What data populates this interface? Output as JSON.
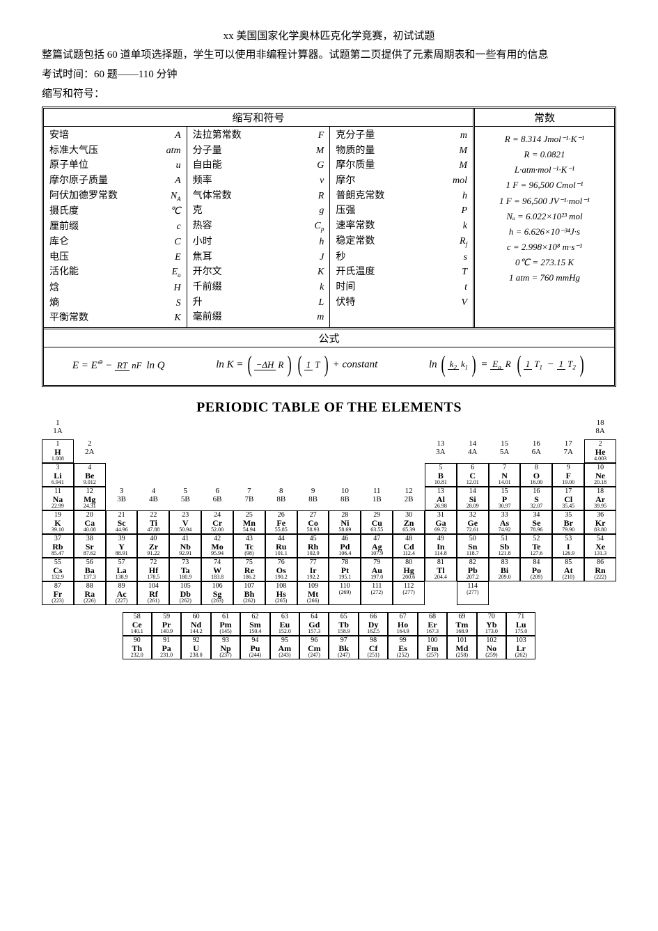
{
  "title": "xx 美国国家化学奥林匹克化学竞赛，初试试题",
  "intro1": "整篇试题包括 60 道单项选择题，学生可以使用非编程计算器。试题第二页提供了元素周期表和一些有用的信息",
  "intro2": "考试时间：60 题——110 分钟",
  "intro3": "缩写和符号：",
  "abbrev_header": "缩写和符号",
  "const_header": "常数",
  "formula_header": "公式",
  "col1": [
    [
      "安培",
      "A"
    ],
    [
      "标准大气压",
      "atm"
    ],
    [
      "原子单位",
      "u"
    ],
    [
      "摩尔原子质量",
      "A"
    ],
    [
      "阿伏加德罗常数",
      "N_A"
    ],
    [
      "摄氏度",
      "℃"
    ],
    [
      "厘前缀",
      "c"
    ],
    [
      "库仑",
      "C"
    ],
    [
      "电压",
      "E"
    ],
    [
      "活化能",
      "E_a"
    ],
    [
      "焓",
      "H"
    ],
    [
      "熵",
      "S"
    ],
    [
      "平衡常数",
      "K"
    ]
  ],
  "col2": [
    [
      "法拉第常数",
      "F"
    ],
    [
      "分子量",
      "M"
    ],
    [
      "自由能",
      "G"
    ],
    [
      "频率",
      "v"
    ],
    [
      "气体常数",
      "R"
    ],
    [
      "克",
      "g"
    ],
    [
      "热容",
      "C_p"
    ],
    [
      "小时",
      "h"
    ],
    [
      "焦耳",
      "J"
    ],
    [
      "开尔文",
      "K"
    ],
    [
      "千前缀",
      "k"
    ],
    [
      "升",
      "L"
    ],
    [
      "毫前缀",
      "m"
    ]
  ],
  "col3": [
    [
      "克分子量",
      "m"
    ],
    [
      "物质的量",
      "M"
    ],
    [
      "摩尔质量",
      "M"
    ],
    [
      "摩尔",
      "mol"
    ],
    [
      "普朗克常数",
      "h"
    ],
    [
      "压强",
      "P"
    ],
    [
      "速率常数",
      "k"
    ],
    [
      "稳定常数",
      "R_f"
    ],
    [
      "秒",
      "s"
    ],
    [
      "开氏温度",
      "T"
    ],
    [
      "时间",
      "t"
    ],
    [
      "伏特",
      "V"
    ]
  ],
  "constants": [
    "R = 8.314 Jmol⁻¹·K⁻¹",
    "R = 0.0821",
    "L·atm·mol⁻¹·K⁻¹",
    "1 F = 96,500 Cmol⁻¹",
    "1 F = 96,500 JV⁻¹·mol⁻¹",
    "Nₐ = 6.022×10²³ mol",
    "h = 6.626×10⁻³⁴J·s",
    "c = 2.998×10⁸ m·s⁻¹",
    "0℃ = 273.15 K",
    "1 atm = 760 mmHg"
  ],
  "pt_title": "PERIODIC TABLE OF THE ELEMENTS",
  "groups_top": {
    "1": "1\n1A",
    "18": "18\n8A"
  },
  "groups_row2": {
    "2": "2\n2A",
    "13": "13\n3A",
    "14": "14\n4A",
    "15": "15\n5A",
    "16": "16\n6A",
    "17": "17\n7A"
  },
  "groups_row4": {
    "3": "3\n3B",
    "4": "4\n4B",
    "5": "5\n5B",
    "6": "6\n6B",
    "7": "7\n7B",
    "8": "8\n8B",
    "9": "9\n8B",
    "10": "10\n8B",
    "11": "11\n1B",
    "12": "12\n2B"
  },
  "elements": [
    {
      "z": 1,
      "s": "H",
      "m": "1.008",
      "r": 1,
      "c": 1
    },
    {
      "z": 2,
      "s": "He",
      "m": "4.003",
      "r": 1,
      "c": 18
    },
    {
      "z": 3,
      "s": "Li",
      "m": "6.941",
      "r": 2,
      "c": 1
    },
    {
      "z": 4,
      "s": "Be",
      "m": "9.012",
      "r": 2,
      "c": 2
    },
    {
      "z": 5,
      "s": "B",
      "m": "10.81",
      "r": 2,
      "c": 13
    },
    {
      "z": 6,
      "s": "C",
      "m": "12.01",
      "r": 2,
      "c": 14
    },
    {
      "z": 7,
      "s": "N",
      "m": "14.01",
      "r": 2,
      "c": 15
    },
    {
      "z": 8,
      "s": "O",
      "m": "16.00",
      "r": 2,
      "c": 16
    },
    {
      "z": 9,
      "s": "F",
      "m": "19.00",
      "r": 2,
      "c": 17
    },
    {
      "z": 10,
      "s": "Ne",
      "m": "20.18",
      "r": 2,
      "c": 18
    },
    {
      "z": 11,
      "s": "Na",
      "m": "22.99",
      "r": 3,
      "c": 1
    },
    {
      "z": 12,
      "s": "Mg",
      "m": "24.31",
      "r": 3,
      "c": 2
    },
    {
      "z": 13,
      "s": "Al",
      "m": "26.98",
      "r": 3,
      "c": 13
    },
    {
      "z": 14,
      "s": "Si",
      "m": "28.09",
      "r": 3,
      "c": 14
    },
    {
      "z": 15,
      "s": "P",
      "m": "30.97",
      "r": 3,
      "c": 15
    },
    {
      "z": 16,
      "s": "S",
      "m": "32.07",
      "r": 3,
      "c": 16
    },
    {
      "z": 17,
      "s": "Cl",
      "m": "35.45",
      "r": 3,
      "c": 17
    },
    {
      "z": 18,
      "s": "Ar",
      "m": "39.95",
      "r": 3,
      "c": 18
    },
    {
      "z": 19,
      "s": "K",
      "m": "39.10",
      "r": 4,
      "c": 1
    },
    {
      "z": 20,
      "s": "Ca",
      "m": "40.08",
      "r": 4,
      "c": 2
    },
    {
      "z": 21,
      "s": "Sc",
      "m": "44.96",
      "r": 4,
      "c": 3
    },
    {
      "z": 22,
      "s": "Ti",
      "m": "47.88",
      "r": 4,
      "c": 4
    },
    {
      "z": 23,
      "s": "V",
      "m": "50.94",
      "r": 4,
      "c": 5
    },
    {
      "z": 24,
      "s": "Cr",
      "m": "52.00",
      "r": 4,
      "c": 6
    },
    {
      "z": 25,
      "s": "Mn",
      "m": "54.94",
      "r": 4,
      "c": 7
    },
    {
      "z": 26,
      "s": "Fe",
      "m": "55.85",
      "r": 4,
      "c": 8
    },
    {
      "z": 27,
      "s": "Co",
      "m": "58.93",
      "r": 4,
      "c": 9
    },
    {
      "z": 28,
      "s": "Ni",
      "m": "58.69",
      "r": 4,
      "c": 10
    },
    {
      "z": 29,
      "s": "Cu",
      "m": "63.55",
      "r": 4,
      "c": 11
    },
    {
      "z": 30,
      "s": "Zn",
      "m": "65.39",
      "r": 4,
      "c": 12
    },
    {
      "z": 31,
      "s": "Ga",
      "m": "69.72",
      "r": 4,
      "c": 13
    },
    {
      "z": 32,
      "s": "Ge",
      "m": "72.61",
      "r": 4,
      "c": 14
    },
    {
      "z": 33,
      "s": "As",
      "m": "74.92",
      "r": 4,
      "c": 15
    },
    {
      "z": 34,
      "s": "Se",
      "m": "78.96",
      "r": 4,
      "c": 16
    },
    {
      "z": 35,
      "s": "Br",
      "m": "79.90",
      "r": 4,
      "c": 17
    },
    {
      "z": 36,
      "s": "Kr",
      "m": "83.80",
      "r": 4,
      "c": 18
    },
    {
      "z": 37,
      "s": "Rb",
      "m": "85.47",
      "r": 5,
      "c": 1
    },
    {
      "z": 38,
      "s": "Sr",
      "m": "87.62",
      "r": 5,
      "c": 2
    },
    {
      "z": 39,
      "s": "Y",
      "m": "88.91",
      "r": 5,
      "c": 3
    },
    {
      "z": 40,
      "s": "Zr",
      "m": "91.22",
      "r": 5,
      "c": 4
    },
    {
      "z": 41,
      "s": "Nb",
      "m": "92.91",
      "r": 5,
      "c": 5
    },
    {
      "z": 42,
      "s": "Mo",
      "m": "95.94",
      "r": 5,
      "c": 6
    },
    {
      "z": 43,
      "s": "Tc",
      "m": "(98)",
      "r": 5,
      "c": 7
    },
    {
      "z": 44,
      "s": "Ru",
      "m": "101.1",
      "r": 5,
      "c": 8
    },
    {
      "z": 45,
      "s": "Rh",
      "m": "102.9",
      "r": 5,
      "c": 9
    },
    {
      "z": 46,
      "s": "Pd",
      "m": "106.4",
      "r": 5,
      "c": 10
    },
    {
      "z": 47,
      "s": "Ag",
      "m": "107.9",
      "r": 5,
      "c": 11
    },
    {
      "z": 48,
      "s": "Cd",
      "m": "112.4",
      "r": 5,
      "c": 12
    },
    {
      "z": 49,
      "s": "In",
      "m": "114.8",
      "r": 5,
      "c": 13
    },
    {
      "z": 50,
      "s": "Sn",
      "m": "118.7",
      "r": 5,
      "c": 14
    },
    {
      "z": 51,
      "s": "Sb",
      "m": "121.8",
      "r": 5,
      "c": 15
    },
    {
      "z": 52,
      "s": "Te",
      "m": "127.6",
      "r": 5,
      "c": 16
    },
    {
      "z": 53,
      "s": "I",
      "m": "126.9",
      "r": 5,
      "c": 17
    },
    {
      "z": 54,
      "s": "Xe",
      "m": "131.3",
      "r": 5,
      "c": 18
    },
    {
      "z": 55,
      "s": "Cs",
      "m": "132.9",
      "r": 6,
      "c": 1
    },
    {
      "z": 56,
      "s": "Ba",
      "m": "137.3",
      "r": 6,
      "c": 2
    },
    {
      "z": 57,
      "s": "La",
      "m": "138.9",
      "r": 6,
      "c": 3
    },
    {
      "z": 72,
      "s": "Hf",
      "m": "178.5",
      "r": 6,
      "c": 4
    },
    {
      "z": 73,
      "s": "Ta",
      "m": "180.9",
      "r": 6,
      "c": 5
    },
    {
      "z": 74,
      "s": "W",
      "m": "183.8",
      "r": 6,
      "c": 6
    },
    {
      "z": 75,
      "s": "Re",
      "m": "186.2",
      "r": 6,
      "c": 7
    },
    {
      "z": 76,
      "s": "Os",
      "m": "190.2",
      "r": 6,
      "c": 8
    },
    {
      "z": 77,
      "s": "Ir",
      "m": "192.2",
      "r": 6,
      "c": 9
    },
    {
      "z": 78,
      "s": "Pt",
      "m": "195.1",
      "r": 6,
      "c": 10
    },
    {
      "z": 79,
      "s": "Au",
      "m": "197.0",
      "r": 6,
      "c": 11
    },
    {
      "z": 80,
      "s": "Hg",
      "m": "200.6",
      "r": 6,
      "c": 12
    },
    {
      "z": 81,
      "s": "Tl",
      "m": "204.4",
      "r": 6,
      "c": 13
    },
    {
      "z": 82,
      "s": "Pb",
      "m": "207.2",
      "r": 6,
      "c": 14
    },
    {
      "z": 83,
      "s": "Bi",
      "m": "209.0",
      "r": 6,
      "c": 15
    },
    {
      "z": 84,
      "s": "Po",
      "m": "(209)",
      "r": 6,
      "c": 16
    },
    {
      "z": 85,
      "s": "At",
      "m": "(210)",
      "r": 6,
      "c": 17
    },
    {
      "z": 86,
      "s": "Rn",
      "m": "(222)",
      "r": 6,
      "c": 18
    },
    {
      "z": 87,
      "s": "Fr",
      "m": "(223)",
      "r": 7,
      "c": 1
    },
    {
      "z": 88,
      "s": "Ra",
      "m": "(226)",
      "r": 7,
      "c": 2
    },
    {
      "z": 89,
      "s": "Ac",
      "m": "(227)",
      "r": 7,
      "c": 3
    },
    {
      "z": 104,
      "s": "Rf",
      "m": "(261)",
      "r": 7,
      "c": 4
    },
    {
      "z": 105,
      "s": "Db",
      "m": "(262)",
      "r": 7,
      "c": 5
    },
    {
      "z": 106,
      "s": "Sg",
      "m": "(263)",
      "r": 7,
      "c": 6
    },
    {
      "z": 107,
      "s": "Bh",
      "m": "(262)",
      "r": 7,
      "c": 7
    },
    {
      "z": 108,
      "s": "Hs",
      "m": "(265)",
      "r": 7,
      "c": 8
    },
    {
      "z": 109,
      "s": "Mt",
      "m": "(266)",
      "r": 7,
      "c": 9
    },
    {
      "z": 110,
      "s": "",
      "m": "(269)",
      "r": 7,
      "c": 10
    },
    {
      "z": 111,
      "s": "",
      "m": "(272)",
      "r": 7,
      "c": 11
    },
    {
      "z": 112,
      "s": "",
      "m": "(277)",
      "r": 7,
      "c": 12
    },
    {
      "z": 114,
      "s": "",
      "m": "(277)",
      "r": 7,
      "c": 14
    }
  ],
  "lan": [
    {
      "z": 58,
      "s": "Ce",
      "m": "140.1"
    },
    {
      "z": 59,
      "s": "Pr",
      "m": "140.9"
    },
    {
      "z": 60,
      "s": "Nd",
      "m": "144.2"
    },
    {
      "z": 61,
      "s": "Pm",
      "m": "(145)"
    },
    {
      "z": 62,
      "s": "Sm",
      "m": "150.4"
    },
    {
      "z": 63,
      "s": "Eu",
      "m": "152.0"
    },
    {
      "z": 64,
      "s": "Gd",
      "m": "157.3"
    },
    {
      "z": 65,
      "s": "Tb",
      "m": "158.9"
    },
    {
      "z": 66,
      "s": "Dy",
      "m": "162.5"
    },
    {
      "z": 67,
      "s": "Ho",
      "m": "164.9"
    },
    {
      "z": 68,
      "s": "Er",
      "m": "167.3"
    },
    {
      "z": 69,
      "s": "Tm",
      "m": "168.9"
    },
    {
      "z": 70,
      "s": "Yb",
      "m": "173.0"
    },
    {
      "z": 71,
      "s": "Lu",
      "m": "175.0"
    }
  ],
  "act": [
    {
      "z": 90,
      "s": "Th",
      "m": "232.0"
    },
    {
      "z": 91,
      "s": "Pa",
      "m": "231.0"
    },
    {
      "z": 92,
      "s": "U",
      "m": "238.0"
    },
    {
      "z": 93,
      "s": "Np",
      "m": "(237)"
    },
    {
      "z": 94,
      "s": "Pu",
      "m": "(244)"
    },
    {
      "z": 95,
      "s": "Am",
      "m": "(243)"
    },
    {
      "z": 96,
      "s": "Cm",
      "m": "(247)"
    },
    {
      "z": 97,
      "s": "Bk",
      "m": "(247)"
    },
    {
      "z": 98,
      "s": "Cf",
      "m": "(251)"
    },
    {
      "z": 99,
      "s": "Es",
      "m": "(252)"
    },
    {
      "z": 100,
      "s": "Fm",
      "m": "(257)"
    },
    {
      "z": 101,
      "s": "Md",
      "m": "(258)"
    },
    {
      "z": 102,
      "s": "No",
      "m": "(259)"
    },
    {
      "z": 103,
      "s": "Lr",
      "m": "(262)"
    }
  ]
}
